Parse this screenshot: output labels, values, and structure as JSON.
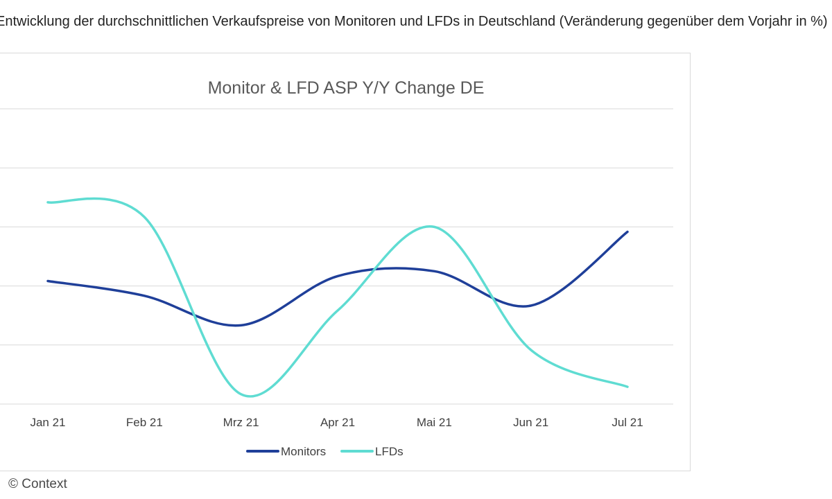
{
  "page": {
    "header_text": "Entwicklung der durchschnittlichen Verkaufspreise von Monitoren und LFDs in Deutschland (Veränderung gegenüber dem Vorjahr in %)",
    "credit": "© Context"
  },
  "colors": {
    "monitors": "#1f3f99",
    "lfds": "#5fdcd2",
    "grid": "#d9d9d9",
    "title": "#595959",
    "tick": "#404040"
  },
  "chart_data": {
    "type": "line",
    "title": "Monitor & LFD ASP Y/Y Change DE",
    "xlabel": "",
    "ylabel": "",
    "categories": [
      "Jan 21",
      "Feb 21",
      "Mrz 21",
      "Apr 21",
      "Mai 21",
      "Jun 21",
      "Jul 21"
    ],
    "ylim": [
      0,
      6
    ],
    "grid": true,
    "legend": "bottom",
    "series": [
      {
        "name": "Monitors",
        "values": [
          2.5,
          2.2,
          1.6,
          2.6,
          2.7,
          2.0,
          3.5
        ]
      },
      {
        "name": "LFDs",
        "values": [
          4.1,
          3.8,
          0.2,
          1.9,
          3.6,
          1.1,
          0.35
        ]
      }
    ]
  }
}
